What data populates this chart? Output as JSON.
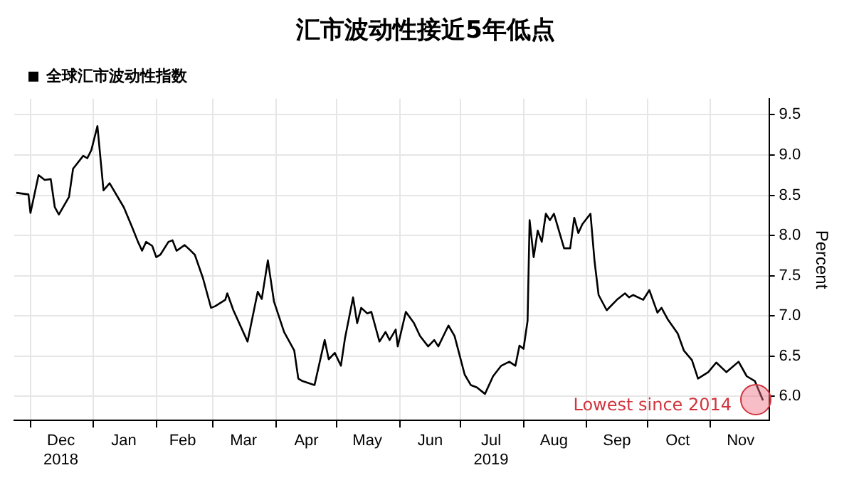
{
  "chart_data": {
    "type": "line",
    "title": "汇市波动性接近5年低点",
    "ylabel": "Percent",
    "x": [
      "2018-11-24",
      "2018-11-30",
      "2018-12-01",
      "2018-12-05",
      "2018-12-08",
      "2018-12-11",
      "2018-12-13",
      "2018-12-15",
      "2018-12-20",
      "2018-12-22",
      "2018-12-27",
      "2018-12-29",
      "2018-12-31",
      "2019-01-03",
      "2019-01-06",
      "2019-01-09",
      "2019-01-16",
      "2019-01-20",
      "2019-01-23",
      "2019-01-25",
      "2019-01-27",
      "2019-01-30",
      "2019-02-01",
      "2019-02-03",
      "2019-02-07",
      "2019-02-09",
      "2019-02-11",
      "2019-02-15",
      "2019-02-18",
      "2019-02-20",
      "2019-02-24",
      "2019-02-28",
      "2019-03-02",
      "2019-03-07",
      "2019-03-08",
      "2019-03-11",
      "2019-03-18",
      "2019-03-23",
      "2019-03-25",
      "2019-03-28",
      "2019-03-31",
      "2019-04-05",
      "2019-04-10",
      "2019-04-12",
      "2019-04-14",
      "2019-04-20",
      "2019-04-25",
      "2019-04-27",
      "2019-04-30",
      "2019-05-03",
      "2019-05-05",
      "2019-05-09",
      "2019-05-11",
      "2019-05-13",
      "2019-05-16",
      "2019-05-18",
      "2019-05-22",
      "2019-05-25",
      "2019-05-27",
      "2019-05-30",
      "2019-05-31",
      "2019-06-04",
      "2019-06-08",
      "2019-06-11",
      "2019-06-15",
      "2019-06-18",
      "2019-06-20",
      "2019-06-25",
      "2019-06-28",
      "2019-07-03",
      "2019-07-06",
      "2019-07-09",
      "2019-07-13",
      "2019-07-17",
      "2019-07-21",
      "2019-07-25",
      "2019-07-28",
      "2019-07-30",
      "2019-08-01",
      "2019-08-03",
      "2019-08-04",
      "2019-08-06",
      "2019-08-08",
      "2019-08-10",
      "2019-08-12",
      "2019-08-14",
      "2019-08-16",
      "2019-08-21",
      "2019-08-24",
      "2019-08-26",
      "2019-08-28",
      "2019-08-30",
      "2019-09-03",
      "2019-09-05",
      "2019-09-07",
      "2019-09-11",
      "2019-09-16",
      "2019-09-20",
      "2019-09-22",
      "2019-09-24",
      "2019-09-29",
      "2019-10-02",
      "2019-10-06",
      "2019-10-08",
      "2019-10-11",
      "2019-10-16",
      "2019-10-19",
      "2019-10-23",
      "2019-10-26",
      "2019-10-31",
      "2019-11-04",
      "2019-11-09",
      "2019-11-15",
      "2019-11-19",
      "2019-11-23",
      "2019-11-27"
    ],
    "series": [
      {
        "name": "全球汇市波动性指数",
        "color": "#000000",
        "values": [
          8.53,
          8.51,
          8.28,
          8.75,
          8.69,
          8.7,
          8.35,
          8.26,
          8.48,
          8.83,
          8.99,
          8.96,
          9.06,
          9.36,
          8.56,
          8.65,
          8.35,
          8.11,
          7.92,
          7.81,
          7.92,
          7.87,
          7.73,
          7.76,
          7.92,
          7.94,
          7.81,
          7.88,
          7.81,
          7.76,
          7.47,
          7.1,
          7.12,
          7.2,
          7.28,
          7.07,
          6.68,
          7.3,
          7.21,
          7.69,
          7.18,
          6.8,
          6.57,
          6.22,
          6.19,
          6.14,
          6.7,
          6.46,
          6.54,
          6.38,
          6.72,
          7.23,
          6.91,
          7.1,
          7.03,
          7.05,
          6.68,
          6.8,
          6.7,
          6.83,
          6.62,
          7.05,
          6.91,
          6.75,
          6.62,
          6.7,
          6.62,
          6.88,
          6.75,
          6.27,
          6.14,
          6.11,
          6.03,
          6.25,
          6.38,
          6.43,
          6.38,
          6.63,
          6.59,
          6.94,
          8.19,
          7.73,
          8.06,
          7.92,
          8.27,
          8.19,
          8.27,
          7.84,
          7.84,
          8.22,
          8.03,
          8.14,
          8.27,
          7.68,
          7.26,
          7.07,
          7.2,
          7.28,
          7.23,
          7.26,
          7.2,
          7.32,
          7.04,
          7.1,
          6.96,
          6.78,
          6.57,
          6.45,
          6.22,
          6.3,
          6.42,
          6.3,
          6.43,
          6.25,
          6.19,
          5.95
        ]
      }
    ],
    "xlim": [
      "2018-11-23",
      "2019-11-30"
    ],
    "xticks": [
      {
        "value": "2018-12-01",
        "label": null
      },
      {
        "value": "2018-12-16",
        "label": "Dec\n2018"
      },
      {
        "value": "2019-01-01",
        "label": null
      },
      {
        "value": "2019-01-16",
        "label": "Jan"
      },
      {
        "value": "2019-02-01",
        "label": null
      },
      {
        "value": "2019-02-14",
        "label": "Feb"
      },
      {
        "value": "2019-03-01",
        "label": null
      },
      {
        "value": "2019-03-16",
        "label": "Mar"
      },
      {
        "value": "2019-04-01",
        "label": null
      },
      {
        "value": "2019-04-16",
        "label": "Apr"
      },
      {
        "value": "2019-05-01",
        "label": null
      },
      {
        "value": "2019-05-16",
        "label": "May"
      },
      {
        "value": "2019-06-01",
        "label": null
      },
      {
        "value": "2019-06-16",
        "label": "Jun"
      },
      {
        "value": "2019-07-01",
        "label": null
      },
      {
        "value": "2019-07-16",
        "label": "Jul\n2019"
      },
      {
        "value": "2019-08-01",
        "label": null
      },
      {
        "value": "2019-08-16",
        "label": "Aug"
      },
      {
        "value": "2019-09-01",
        "label": null
      },
      {
        "value": "2019-09-16",
        "label": "Sep"
      },
      {
        "value": "2019-10-01",
        "label": null
      },
      {
        "value": "2019-10-16",
        "label": "Oct"
      },
      {
        "value": "2019-11-01",
        "label": null
      },
      {
        "value": "2019-11-16",
        "label": "Nov"
      }
    ],
    "ylim": [
      5.7,
      9.7
    ],
    "yticks": [
      {
        "value": 6,
        "label": "6.0"
      },
      {
        "value": 6.5,
        "label": "6.5"
      },
      {
        "value": 7,
        "label": "7.0"
      },
      {
        "value": 7.5,
        "label": "7.5"
      },
      {
        "value": 8,
        "label": "8.0"
      },
      {
        "value": 8.5,
        "label": "8.5"
      },
      {
        "value": 9,
        "label": "9.0"
      },
      {
        "value": 9.5,
        "label": "9.5"
      }
    ],
    "grid": true,
    "legend": "top left",
    "marker": "none",
    "line_style": "solid",
    "annotations": [
      {
        "text": "Lowest since 2014",
        "x": "2019-11-27",
        "y": 5.95
      }
    ]
  }
}
